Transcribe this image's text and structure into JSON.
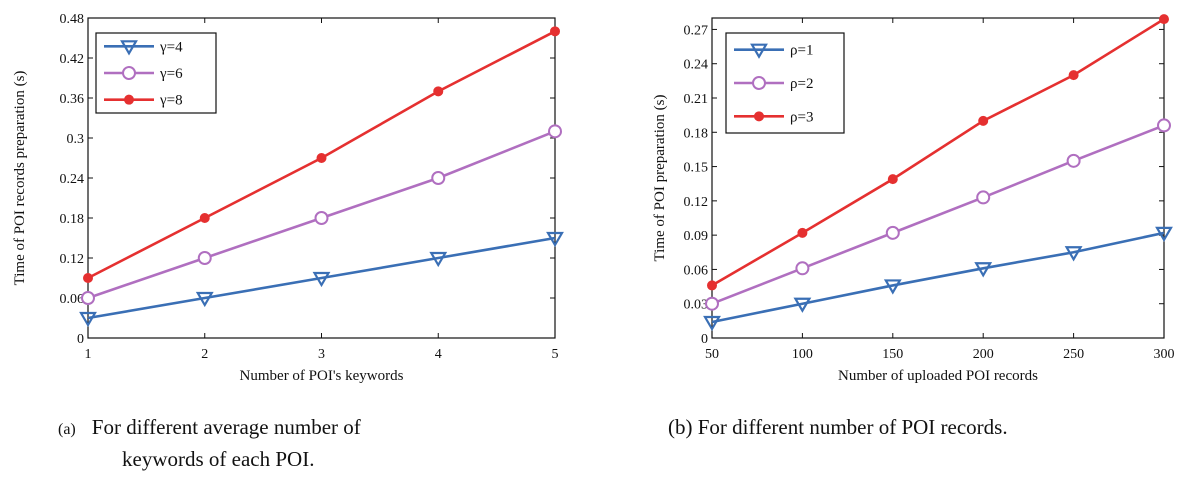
{
  "chart_data": [
    {
      "type": "line",
      "title": "",
      "xlabel": "Number of POI's keywords",
      "ylabel": "Time of POI records preparation (s)",
      "x": [
        1,
        2,
        3,
        4,
        5
      ],
      "xticks": [
        "1",
        "2",
        "3",
        "4",
        "5"
      ],
      "yticks": [
        "0",
        "0.06",
        "0.12",
        "0.18",
        "0.24",
        "0.3",
        "0.36",
        "0.42",
        "0.48"
      ],
      "xlim": [
        1,
        5
      ],
      "ylim": [
        0,
        0.48
      ],
      "legend_position": "top-left",
      "series": [
        {
          "name": "γ=4",
          "values": [
            0.03,
            0.06,
            0.09,
            0.12,
            0.15
          ],
          "color": "#3a6fb5",
          "marker": "triangle-down"
        },
        {
          "name": "γ=6",
          "values": [
            0.06,
            0.12,
            0.18,
            0.24,
            0.31
          ],
          "color": "#b06fc0",
          "marker": "circle-open"
        },
        {
          "name": "γ=8",
          "values": [
            0.09,
            0.18,
            0.27,
            0.37,
            0.46
          ],
          "color": "#e53030",
          "marker": "circle-filled"
        }
      ]
    },
    {
      "type": "line",
      "title": "",
      "xlabel": "Number of uploaded POI records",
      "ylabel": "Time of POI preparation (s)",
      "x": [
        50,
        100,
        150,
        200,
        250,
        300
      ],
      "xticks": [
        "50",
        "100",
        "150",
        "200",
        "250",
        "300"
      ],
      "yticks": [
        "0",
        "0.03",
        "0.06",
        "0.09",
        "0.12",
        "0.15",
        "0.18",
        "0.21",
        "0.24",
        "0.27"
      ],
      "xlim": [
        50,
        300
      ],
      "ylim": [
        0,
        0.28
      ],
      "legend_position": "top-left",
      "series": [
        {
          "name": "ρ=1",
          "values": [
            0.014,
            0.03,
            0.046,
            0.061,
            0.075,
            0.092
          ],
          "color": "#3a6fb5",
          "marker": "triangle-down"
        },
        {
          "name": "ρ=2",
          "values": [
            0.03,
            0.061,
            0.092,
            0.123,
            0.155,
            0.186
          ],
          "color": "#b06fc0",
          "marker": "circle-open"
        },
        {
          "name": "ρ=3",
          "values": [
            0.046,
            0.092,
            0.139,
            0.19,
            0.23,
            0.279
          ],
          "color": "#e53030",
          "marker": "circle-filled"
        }
      ]
    }
  ],
  "captions": {
    "a_tag": "(a)",
    "a_line1": "For different average number of",
    "a_line2": "keywords of each POI.",
    "b": "(b) For different number of  POI records."
  }
}
